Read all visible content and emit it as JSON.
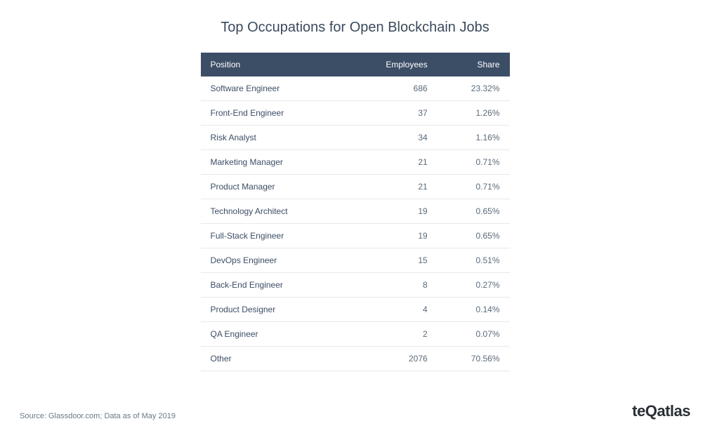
{
  "title": "Top Occupations for Open Blockchain Jobs",
  "table": {
    "type": "table",
    "header_bg": "#3c4d66",
    "header_text_color": "#ffffff",
    "row_border_color": "#e6e8ec",
    "position_text_color": "#3c4d66",
    "value_text_color": "#5a6a7a",
    "font_size": 12,
    "columns": [
      {
        "key": "position",
        "label": "Position",
        "align": "left"
      },
      {
        "key": "employees",
        "label": "Employees",
        "align": "right"
      },
      {
        "key": "share",
        "label": "Share",
        "align": "right"
      }
    ],
    "rows": [
      {
        "position": "Software Engineer",
        "employees": "686",
        "share": "23.32%"
      },
      {
        "position": "Front-End Engineer",
        "employees": "37",
        "share": "1.26%"
      },
      {
        "position": "Risk Analyst",
        "employees": "34",
        "share": "1.16%"
      },
      {
        "position": "Marketing Manager",
        "employees": "21",
        "share": "0.71%"
      },
      {
        "position": "Product Manager",
        "employees": "21",
        "share": "0.71%"
      },
      {
        "position": "Technology Architect",
        "employees": "19",
        "share": "0.65%"
      },
      {
        "position": "Full-Stack Engineer",
        "employees": "19",
        "share": "0.65%"
      },
      {
        "position": "DevOps Engineer",
        "employees": "15",
        "share": "0.51%"
      },
      {
        "position": "Back-End Engineer",
        "employees": "8",
        "share": "0.27%"
      },
      {
        "position": "Product Designer",
        "employees": "4",
        "share": "0.14%"
      },
      {
        "position": "QA Engineer",
        "employees": "2",
        "share": "0.07%"
      },
      {
        "position": "Other",
        "employees": "2076",
        "share": "70.56%"
      }
    ]
  },
  "footer": {
    "source": "Source: Glassdoor.com; Data as of May 2019",
    "brand": "teQatlas"
  },
  "colors": {
    "background": "#ffffff",
    "title": "#3a4a5c",
    "source_text": "#6b7785",
    "brand_text": "#2a2f36"
  }
}
